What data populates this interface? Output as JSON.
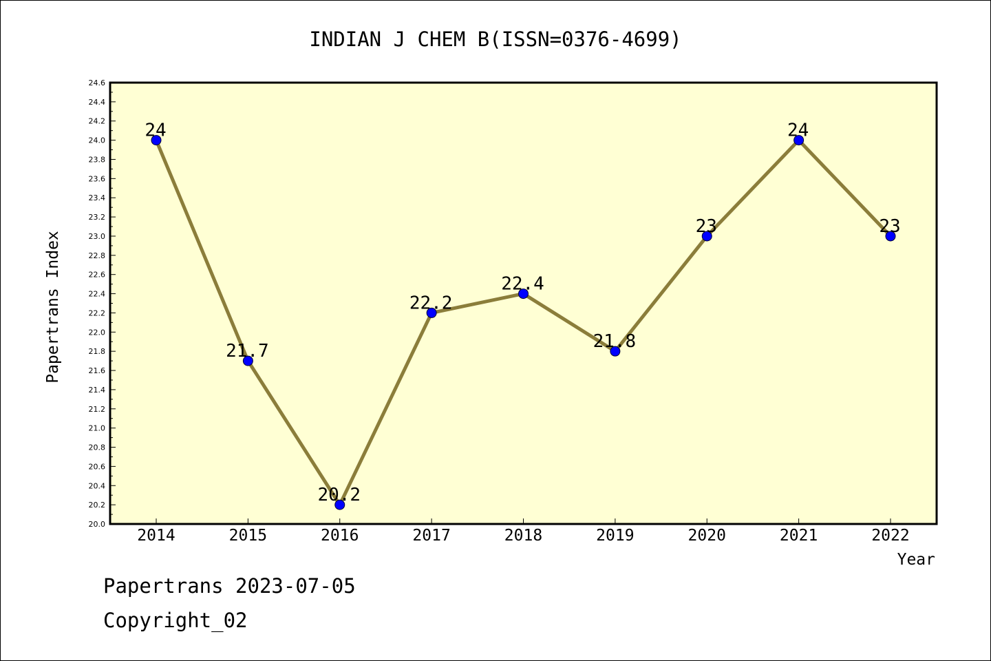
{
  "chart_data": {
    "type": "line",
    "title": "INDIAN J CHEM B(ISSN=0376-4699)",
    "xlabel": "Year",
    "ylabel": "Papertrans Index",
    "x": [
      "2014",
      "2015",
      "2016",
      "2017",
      "2018",
      "2019",
      "2020",
      "2021",
      "2022"
    ],
    "series": [
      {
        "values": [
          24,
          21.7,
          20.2,
          22.2,
          22.4,
          21.8,
          23,
          24,
          23
        ],
        "labels": [
          "24",
          "21.7",
          "20.2",
          "22.2",
          "22.4",
          "21.8",
          "23",
          "24",
          "23"
        ]
      }
    ],
    "ylim": [
      20.0,
      24.6
    ],
    "yticks": [
      "20.0",
      "20.2",
      "20.4",
      "20.6",
      "20.8",
      "21.0",
      "21.2",
      "21.4",
      "21.6",
      "21.8",
      "22.0",
      "22.2",
      "22.4",
      "22.6",
      "22.8",
      "23.0",
      "23.2",
      "23.4",
      "23.6",
      "23.8",
      "24.0",
      "24.2",
      "24.4",
      "24.6"
    ],
    "grid": false,
    "colors": {
      "plot_bg": "#ffffd4",
      "line": "#8b7d3a",
      "marker": "#0000ff",
      "axis": "#000000"
    }
  },
  "footer": {
    "line1": "Papertrans 2023-07-05",
    "line2": "Copyright_02"
  }
}
